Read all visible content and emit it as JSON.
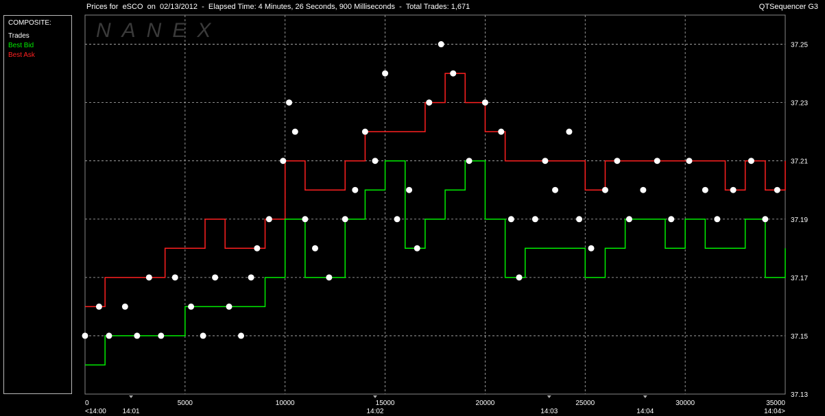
{
  "header": {
    "title": "Prices for  eSCO  on  02/13/2012  -  Elapsed Time: 4 Minutes, 26 Seconds, 900 Milliseconds  -  Total Trades: 1,671",
    "app": "QTSequencer G3"
  },
  "legend": {
    "title": "COMPOSITE:",
    "items": [
      {
        "label": "Trades",
        "color": "#ffffff"
      },
      {
        "label": "Best Bid",
        "color": "#00ee00"
      },
      {
        "label": "Best Ask",
        "color": "#ff2020"
      }
    ]
  },
  "watermark": "NANEX",
  "chart_data": {
    "type": "line",
    "title": "",
    "xlabel": "",
    "ylabel": "",
    "xlim": [
      0,
      35000
    ],
    "ylim": [
      37.13,
      37.26
    ],
    "grid": true,
    "x_ticks": [
      "0",
      "5000",
      "10000",
      "15000",
      "20000",
      "25000",
      "30000",
      "35000"
    ],
    "y_ticks": [
      "37.13",
      "37.15",
      "37.17",
      "37.19",
      "37.21",
      "37.23",
      "37.25"
    ],
    "time_labels": [
      {
        "x": 0,
        "label": "<14:00"
      },
      {
        "x": 2300,
        "label": "14:01"
      },
      {
        "x": 14500,
        "label": "14:02"
      },
      {
        "x": 23200,
        "label": "14:03"
      },
      {
        "x": 28000,
        "label": "14:04"
      },
      {
        "x": 35000,
        "label": "14:04>"
      }
    ],
    "series": [
      {
        "name": "Best Ask",
        "color": "#ff2020",
        "x": [
          0,
          1000,
          2000,
          3000,
          4000,
          5000,
          6000,
          7000,
          8000,
          9000,
          10000,
          11000,
          12000,
          13000,
          14000,
          15000,
          16000,
          17000,
          18000,
          19000,
          20000,
          21000,
          22000,
          23000,
          24000,
          25000,
          26000,
          27000,
          28000,
          29000,
          30000,
          31000,
          32000,
          33000,
          34000,
          35000
        ],
        "values": [
          37.16,
          37.17,
          37.17,
          37.17,
          37.18,
          37.18,
          37.19,
          37.18,
          37.18,
          37.19,
          37.21,
          37.2,
          37.2,
          37.21,
          37.22,
          37.22,
          37.22,
          37.23,
          37.24,
          37.23,
          37.22,
          37.21,
          37.21,
          37.21,
          37.21,
          37.2,
          37.21,
          37.21,
          37.21,
          37.21,
          37.21,
          37.21,
          37.2,
          37.21,
          37.2,
          37.21
        ]
      },
      {
        "name": "Best Bid",
        "color": "#00ee00",
        "x": [
          0,
          1000,
          2000,
          3000,
          4000,
          5000,
          6000,
          7000,
          8000,
          9000,
          10000,
          11000,
          12000,
          13000,
          14000,
          15000,
          16000,
          17000,
          18000,
          19000,
          20000,
          21000,
          22000,
          23000,
          24000,
          25000,
          26000,
          27000,
          28000,
          29000,
          30000,
          31000,
          32000,
          33000,
          34000,
          35000
        ],
        "values": [
          37.14,
          37.15,
          37.15,
          37.15,
          37.15,
          37.16,
          37.16,
          37.16,
          37.16,
          37.17,
          37.19,
          37.17,
          37.17,
          37.19,
          37.2,
          37.21,
          37.18,
          37.19,
          37.2,
          37.21,
          37.19,
          37.17,
          37.18,
          37.18,
          37.18,
          37.17,
          37.18,
          37.19,
          37.19,
          37.18,
          37.19,
          37.18,
          37.18,
          37.19,
          37.17,
          37.18
        ]
      },
      {
        "name": "Trades",
        "color": "#ffffff",
        "x": [
          0,
          700,
          1200,
          2000,
          2600,
          3200,
          3800,
          4500,
          5300,
          5900,
          6500,
          7200,
          7800,
          8300,
          8600,
          9200,
          9900,
          10200,
          10500,
          11000,
          11500,
          12200,
          13000,
          13500,
          14000,
          14500,
          15000,
          15600,
          16200,
          16600,
          17200,
          17800,
          18400,
          19200,
          20000,
          20800,
          21300,
          21700,
          22500,
          23000,
          23500,
          24200,
          24700,
          25300,
          26000,
          26600,
          27200,
          27900,
          28600,
          29300,
          30200,
          31000,
          31600,
          32400,
          33300,
          34000,
          34600
        ],
        "values": [
          37.15,
          37.16,
          37.15,
          37.16,
          37.15,
          37.17,
          37.15,
          37.17,
          37.16,
          37.15,
          37.17,
          37.16,
          37.15,
          37.17,
          37.18,
          37.19,
          37.21,
          37.23,
          37.22,
          37.19,
          37.18,
          37.17,
          37.19,
          37.2,
          37.22,
          37.21,
          37.24,
          37.19,
          37.2,
          37.18,
          37.23,
          37.25,
          37.24,
          37.21,
          37.23,
          37.22,
          37.19,
          37.17,
          37.19,
          37.21,
          37.2,
          37.22,
          37.19,
          37.18,
          37.2,
          37.21,
          37.19,
          37.2,
          37.21,
          37.19,
          37.21,
          37.2,
          37.19,
          37.2,
          37.21,
          37.19,
          37.2
        ]
      }
    ]
  }
}
